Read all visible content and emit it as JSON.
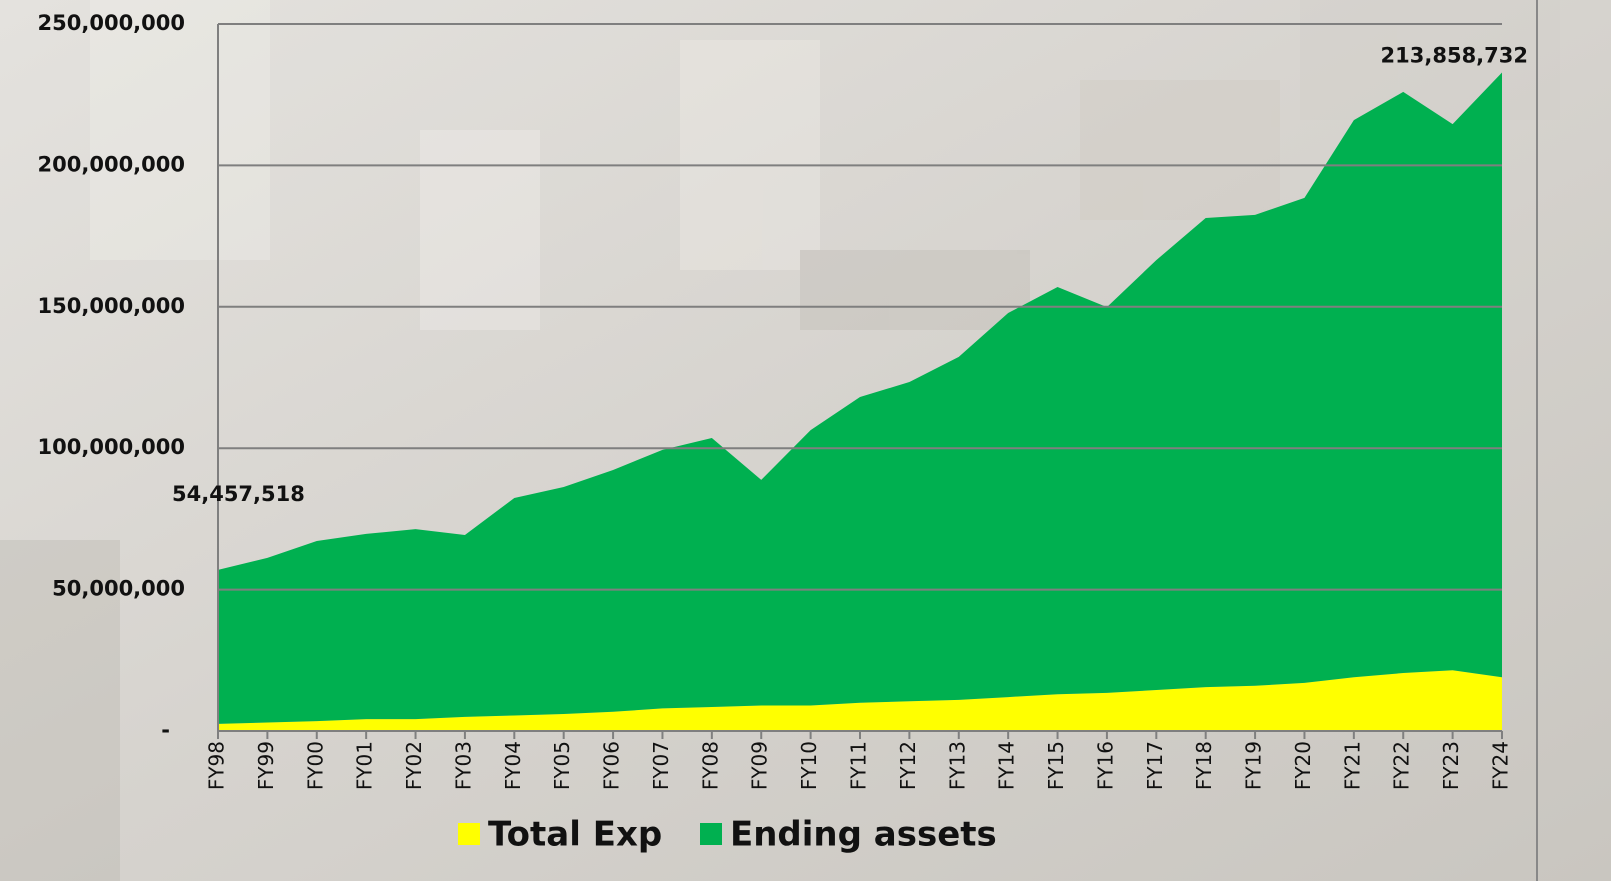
{
  "chart_data": {
    "type": "stacked_area",
    "categories": [
      "FY98",
      "FY99",
      "FY00",
      "FY01",
      "FY02",
      "FY03",
      "FY04",
      "FY05",
      "FY06",
      "FY07",
      "FY08",
      "FY09",
      "FY10",
      "FY11",
      "FY12",
      "FY13",
      "FY14",
      "FY15",
      "FY16",
      "FY17",
      "FY18",
      "FY19",
      "FY20",
      "FY21",
      "FY22",
      "FY23",
      "FY24"
    ],
    "series": [
      {
        "name": "Total Exp",
        "color": "#ffff00",
        "values": [
          2500000,
          3000000,
          3500000,
          4200000,
          4200000,
          5000000,
          5500000,
          6000000,
          6800000,
          8000000,
          8500000,
          9000000,
          9000000,
          10000000,
          10500000,
          11000000,
          12000000,
          13000000,
          13500000,
          14500000,
          15500000,
          16000000,
          17000000,
          19000000,
          20500000,
          21500000,
          19000000
        ]
      },
      {
        "name": "Ending assets",
        "color": "#00b050",
        "values": [
          54457518,
          58200000,
          63700000,
          65500000,
          67200000,
          64300000,
          76900000,
          80300000,
          85500000,
          91400000,
          95100000,
          79800000,
          97400000,
          108100000,
          112900000,
          121300000,
          135800000,
          144000000,
          136400000,
          152000000,
          165900000,
          166500000,
          171500000,
          197000000,
          205500000,
          193100000,
          213858732
        ],
        "value_labels": [
          "54,457,518",
          null,
          null,
          null,
          null,
          null,
          null,
          null,
          null,
          null,
          null,
          null,
          null,
          null,
          null,
          null,
          null,
          null,
          null,
          null,
          null,
          null,
          null,
          null,
          null,
          null,
          "213,858,732"
        ]
      }
    ],
    "ylim": [
      0,
      250000000
    ],
    "yticks": [
      {
        "value": 0,
        "label": "-"
      },
      {
        "value": 50000000,
        "label": "50,000,000"
      },
      {
        "value": 100000000,
        "label": "100,000,000"
      },
      {
        "value": 150000000,
        "label": "150,000,000"
      },
      {
        "value": 200000000,
        "label": "200,000,000"
      },
      {
        "value": 250000000,
        "label": "250,000,000"
      }
    ],
    "grid": true
  }
}
